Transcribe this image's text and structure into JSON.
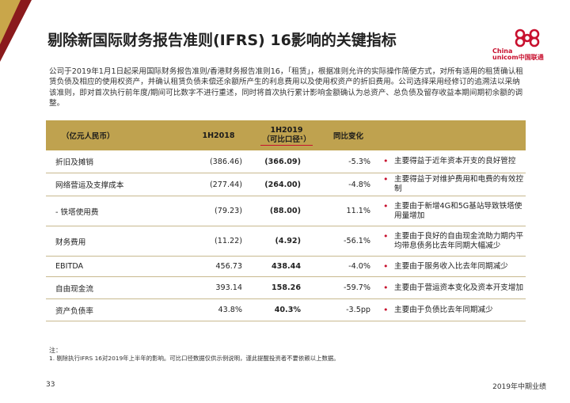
{
  "title": "剔除新国际财务报告准则(IFRS) 16影响的关键指标",
  "logo": {
    "text_line1": "China",
    "text_line2": "unicom中国联通"
  },
  "intro": "公司于2019年1月1日起采用国际财务报告准则/香港财务报告准则16，「租赁」，根据准则允许的实际操作简便方式，对所有适用的租赁确认租赁负债及相应的使用权资产，并确认租赁负债未偿还余额所产生的利息费用以及使用权资产的折旧费用。公司选择采用经修订的追溯法以采纳该准则，即对首次执行前年度/期间可比数字不进行重述，同时将首次执行累计影响金额确认为总资产、总负债及留存收益本期间期初余额的调整。",
  "table": {
    "headers": {
      "label": "（亿元人民币）",
      "col_1h2018": "1H2018",
      "col_1h2019_line1": "1H2019",
      "col_1h2019_line2": "（可比口径¹）",
      "col_change": "同比变化"
    },
    "rows": [
      {
        "label": "折旧及摊销",
        "v2018": "(386.46)",
        "v2019": "(366.09)",
        "change": "-5.3%",
        "note": "主要得益于近年资本开支的良好管控"
      },
      {
        "label": "网络营运及支撑成本",
        "v2018": "(277.44)",
        "v2019": "(264.00)",
        "change": "-4.8%",
        "note": "主要得益于对维护费用和电费的有效控制"
      },
      {
        "label": "- 铁塔使用费",
        "v2018": "(79.23)",
        "v2019": "(88.00)",
        "change": "11.1%",
        "note": "主要由于新增4G和5G基站导致铁塔使用量增加"
      },
      {
        "label": "财务费用",
        "v2018": "(11.22)",
        "v2019": "(4.92)",
        "change": "-56.1%",
        "note": "主要由于良好的自由现金流助力期内平均带息债务比去年同期大幅减少"
      },
      {
        "label": "EBITDA",
        "v2018": "456.73",
        "v2019": "438.44",
        "change": "-4.0%",
        "note": "主要由于服务收入比去年同期减少"
      },
      {
        "label": "自由现金流",
        "v2018": "393.14",
        "v2019": "158.26",
        "change": "-59.7%",
        "note": "主要由于营运资本变化及资本开支增加"
      },
      {
        "label": "资产负债率",
        "v2018": "43.8%",
        "v2019": "40.3%",
        "change": "-3.5pp",
        "note": "主要由于负债比去年同期减少"
      }
    ]
  },
  "footnote_label": "注：",
  "footnote": "1. 剔除执行IFRS 16对2019年上半年的影响。可比口径数据仅供示例说明，谨此提醒投资者不要依赖以上数据。",
  "page_number": "33",
  "footer_right": "2019年中期业绩",
  "colors": {
    "header_gold": "#bfa24f",
    "accent_red": "#c8102e",
    "corner_red": "#8a1a1c"
  }
}
